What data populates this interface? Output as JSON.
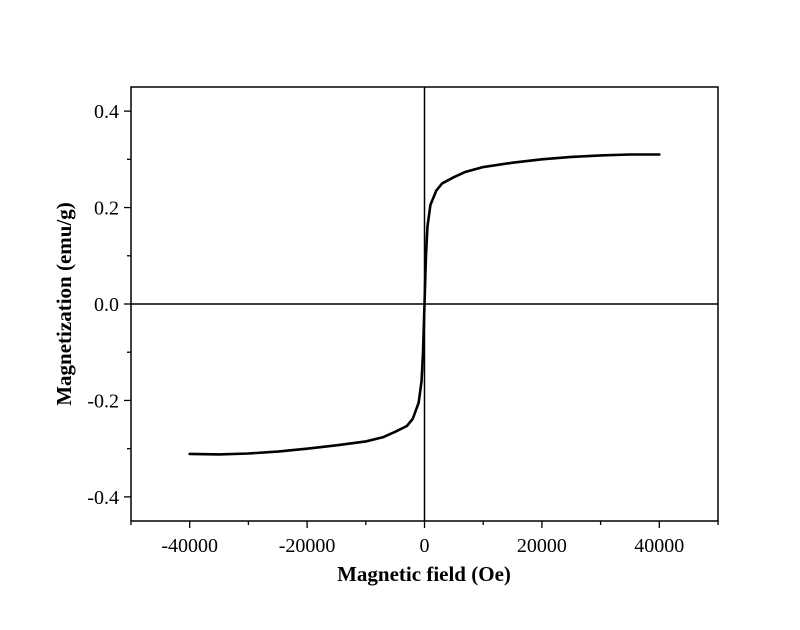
{
  "chart_data": {
    "type": "line",
    "title": "",
    "xlabel": "Magnetic field (Oe)",
    "ylabel": "Magnetization (emu/g)",
    "xlim": [
      -50000,
      50000
    ],
    "ylim": [
      -0.45,
      0.45
    ],
    "xticks": [
      -40000,
      -20000,
      0,
      20000,
      40000
    ],
    "xtick_labels": [
      "-40000",
      "-20000",
      "0",
      "20000",
      "40000"
    ],
    "yticks": [
      -0.4,
      -0.2,
      0.0,
      0.2,
      0.4
    ],
    "ytick_labels": [
      "-0.4",
      "-0.2",
      "0.0",
      "0.2",
      "0.4"
    ],
    "grid": false,
    "zero_lines": true,
    "line_color": "#000000",
    "series": [
      {
        "x": [
          -40000,
          -35000,
          -30000,
          -25000,
          -20000,
          -15000,
          -10000,
          -7000,
          -5000,
          -3000,
          -2000,
          -1000,
          -500,
          -250,
          0,
          250,
          500,
          1000,
          2000,
          3000,
          5000,
          7000,
          10000,
          15000,
          20000,
          25000,
          30000,
          35000,
          40000
        ],
        "y": [
          -0.311,
          -0.312,
          -0.31,
          -0.306,
          -0.3,
          -0.293,
          -0.285,
          -0.276,
          -0.265,
          -0.253,
          -0.238,
          -0.205,
          -0.16,
          -0.1,
          0.0,
          0.1,
          0.16,
          0.205,
          0.235,
          0.25,
          0.263,
          0.274,
          0.284,
          0.293,
          0.3,
          0.305,
          0.308,
          0.31,
          0.31
        ]
      }
    ]
  }
}
